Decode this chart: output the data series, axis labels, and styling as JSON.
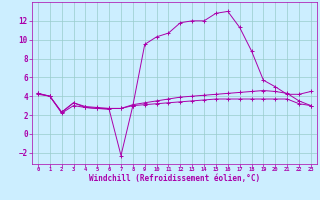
{
  "xlabel": "Windchill (Refroidissement éolien,°C)",
  "background_color": "#cceeff",
  "grid_color": "#99cccc",
  "line_color": "#aa00aa",
  "xlim": [
    -0.5,
    23.5
  ],
  "ylim": [
    -3.2,
    14.0
  ],
  "xticks": [
    0,
    1,
    2,
    3,
    4,
    5,
    6,
    7,
    8,
    9,
    10,
    11,
    12,
    13,
    14,
    15,
    16,
    17,
    18,
    19,
    20,
    21,
    22,
    23
  ],
  "yticks": [
    -2,
    0,
    2,
    4,
    6,
    8,
    10,
    12
  ],
  "line1_x": [
    0,
    1,
    2,
    3,
    4,
    5,
    6,
    7,
    8,
    9,
    10,
    11,
    12,
    13,
    14,
    15,
    16,
    17,
    18,
    19,
    20,
    21,
    22,
    23
  ],
  "line1_y": [
    4.3,
    4.0,
    2.3,
    3.3,
    2.8,
    2.7,
    2.6,
    -2.3,
    3.0,
    9.5,
    10.3,
    10.7,
    11.8,
    12.0,
    12.0,
    12.8,
    13.0,
    11.3,
    8.8,
    5.7,
    5.0,
    4.2,
    4.2,
    4.5
  ],
  "line2_x": [
    0,
    1,
    2,
    3,
    4,
    5,
    6,
    7,
    8,
    9,
    10,
    11,
    12,
    13,
    14,
    15,
    16,
    17,
    18,
    19,
    20,
    21,
    22,
    23
  ],
  "line2_y": [
    4.2,
    4.0,
    2.2,
    3.0,
    2.8,
    2.7,
    2.7,
    2.7,
    3.0,
    3.1,
    3.2,
    3.3,
    3.4,
    3.5,
    3.6,
    3.7,
    3.7,
    3.7,
    3.7,
    3.7,
    3.7,
    3.7,
    3.2,
    3.0
  ],
  "line3_x": [
    0,
    1,
    2,
    3,
    4,
    5,
    6,
    7,
    8,
    9,
    10,
    11,
    12,
    13,
    14,
    15,
    16,
    17,
    18,
    19,
    20,
    21,
    22,
    23
  ],
  "line3_y": [
    4.3,
    4.0,
    2.3,
    3.3,
    2.9,
    2.8,
    2.7,
    2.7,
    3.1,
    3.3,
    3.5,
    3.7,
    3.9,
    4.0,
    4.1,
    4.2,
    4.3,
    4.4,
    4.5,
    4.6,
    4.5,
    4.3,
    3.5,
    3.0
  ]
}
